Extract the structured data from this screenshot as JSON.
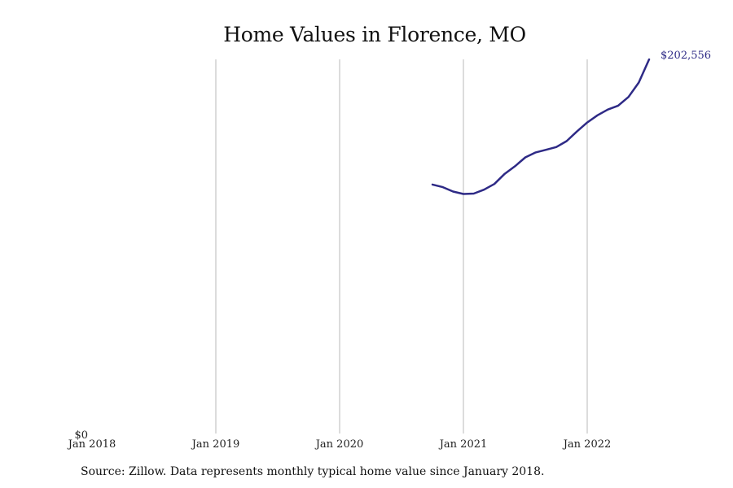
{
  "chart_data": {
    "type": "line",
    "title": "Home Values in Florence, MO",
    "xlabel": "",
    "ylabel": "",
    "x_ticks": [
      "Jan 2018",
      "Jan 2019",
      "Jan 2020",
      "Jan 2021",
      "Jan 2022"
    ],
    "y_ticks": [
      "$0"
    ],
    "ylim": [
      0,
      202556
    ],
    "xlim": [
      "2018-01",
      "2022-07"
    ],
    "grid": "vertical",
    "legend": "none",
    "series": [
      {
        "color": "#2e2a86",
        "end_label": "$202,556",
        "x": [
          "2020-10",
          "2020-11",
          "2020-12",
          "2021-01",
          "2021-02",
          "2021-03",
          "2021-04",
          "2021-05",
          "2021-06",
          "2021-07",
          "2021-08",
          "2021-09",
          "2021-10",
          "2021-11",
          "2021-12",
          "2022-01",
          "2022-02",
          "2022-03",
          "2022-04",
          "2022-05",
          "2022-06",
          "2022-07"
        ],
        "values": [
          134800,
          133400,
          131000,
          129700,
          129900,
          132000,
          135100,
          140600,
          144700,
          149500,
          152200,
          153600,
          155100,
          158300,
          163500,
          168400,
          172300,
          175400,
          177500,
          182200,
          190000,
          202556
        ]
      }
    ]
  },
  "footer": {
    "source": "Source: Zillow. Data represents monthly typical home value since January 2018."
  }
}
